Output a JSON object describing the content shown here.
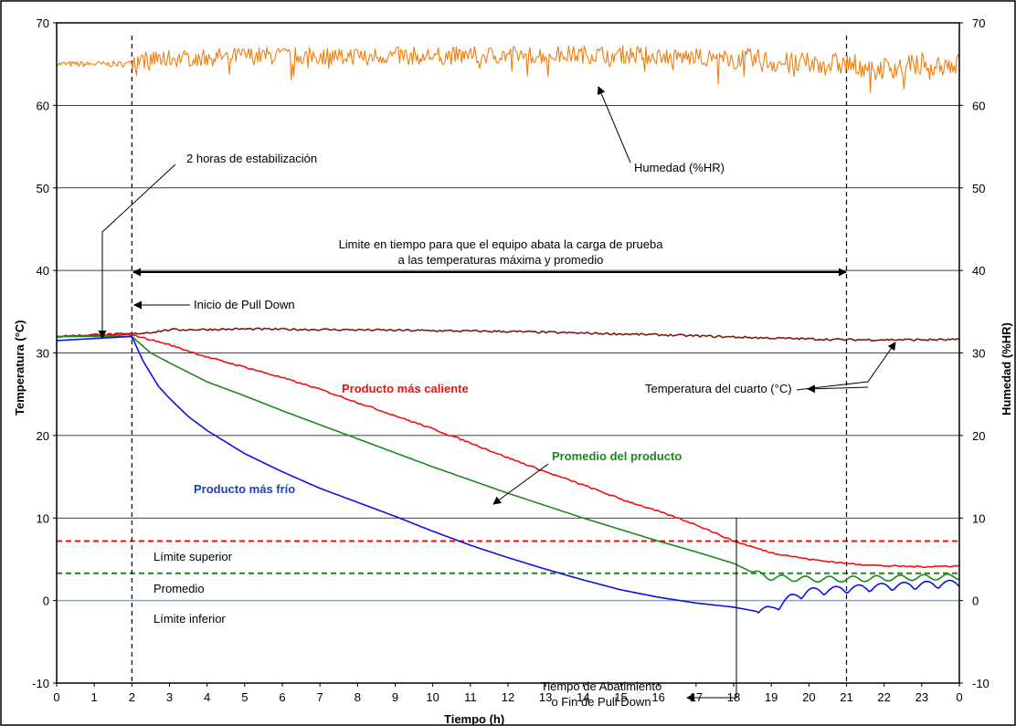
{
  "chart_data": {
    "type": "line",
    "xlabel": "Tiempo (h)",
    "ylabel_left": "Temperatura (°C)",
    "ylabel_right": "Humedad (%HR)",
    "xlim": [
      0,
      24
    ],
    "ylim": [
      -10,
      70
    ],
    "x_ticks": [
      "0",
      "1",
      "2",
      "3",
      "4",
      "5",
      "6",
      "7",
      "8",
      "9",
      "10",
      "11",
      "12",
      "13",
      "14",
      "15",
      "16",
      "17",
      "18",
      "19",
      "20",
      "21",
      "22",
      "23",
      "0"
    ],
    "y_ticks": [
      -10,
      0,
      10,
      20,
      30,
      40,
      50,
      60,
      70
    ],
    "grid": "horizontal",
    "colors": {
      "humidity": "#f07f12",
      "room": "#7a1a16",
      "hot": "#f01010",
      "avg": "#1a8a1a",
      "cold": "#1010e0",
      "limit_upper": "#f01010",
      "limit_avg": "#1a8a1a",
      "limit_lower": "#7ea7e0"
    },
    "series": [
      {
        "name": "Humedad (%HR)",
        "key": "humidity",
        "axis": "right",
        "x": [
          0,
          1.9,
          2,
          5,
          10,
          15,
          18.5,
          19.5,
          21,
          22,
          23,
          24
        ],
        "y": [
          65,
          65,
          65.5,
          66,
          66,
          66.2,
          65.5,
          65,
          65,
          64.5,
          65,
          65
        ]
      },
      {
        "name": "Temperatura del cuarto (°C)",
        "key": "room",
        "axis": "left",
        "x": [
          0,
          1,
          2,
          2.5,
          3,
          5,
          8,
          12,
          16,
          19,
          21,
          24
        ],
        "y": [
          32,
          32.2,
          32.3,
          32.5,
          32.8,
          32.9,
          32.8,
          32.6,
          32.2,
          31.8,
          31.6,
          31.6
        ]
      },
      {
        "name": "Producto más caliente",
        "key": "hot",
        "axis": "left",
        "x": [
          0,
          2,
          3,
          4,
          5,
          6,
          7,
          8,
          9,
          10,
          11,
          12,
          13,
          14,
          15,
          16,
          17,
          18,
          19,
          20,
          21,
          22,
          23,
          24
        ],
        "y": [
          32,
          32.2,
          31,
          29.5,
          28.3,
          27,
          25.6,
          24,
          22.4,
          20.8,
          19.1,
          17.3,
          15.6,
          14,
          12.3,
          10.8,
          9.2,
          7.2,
          5.8,
          5,
          4.5,
          4.2,
          4.1,
          4.2
        ]
      },
      {
        "name": "Promedio del producto",
        "key": "avg",
        "axis": "left",
        "x": [
          0,
          2,
          2.5,
          3,
          4,
          5,
          6,
          7,
          8,
          9,
          10,
          11,
          12,
          13,
          14,
          15,
          16,
          17,
          18,
          18.5,
          19,
          20,
          21,
          22,
          23,
          24
        ],
        "y": [
          32,
          32,
          30,
          28.8,
          26.5,
          24.8,
          23,
          21.3,
          19.6,
          17.9,
          16.2,
          14.6,
          13,
          11.5,
          10,
          8.6,
          7.2,
          5.9,
          4.5,
          3.4,
          2.8,
          2.6,
          2.6,
          2.7,
          2.8,
          2.9
        ]
      },
      {
        "name": "Producto más frío",
        "key": "cold",
        "axis": "left",
        "x": [
          0,
          2,
          2.3,
          2.7,
          3,
          3.5,
          4,
          5,
          6,
          7,
          8,
          9,
          10,
          11,
          12,
          13,
          14,
          15,
          16,
          17,
          18,
          18.6,
          19,
          19.5,
          20,
          21,
          22,
          23,
          24
        ],
        "y": [
          31.5,
          32,
          29,
          26,
          24.5,
          22.3,
          20.6,
          17.8,
          15.6,
          13.6,
          11.9,
          10.2,
          8.4,
          6.7,
          5.2,
          3.8,
          2.5,
          1.3,
          0.4,
          -0.3,
          -0.8,
          -1.3,
          -1.2,
          0.2,
          1,
          1.3,
          1.6,
          1.8,
          2
        ]
      }
    ],
    "limits": [
      {
        "label": "Límite superior",
        "key": "limit_upper",
        "y": 7.2,
        "style": "dashed"
      },
      {
        "label": "Promedio",
        "key": "limit_avg",
        "y": 3.3,
        "style": "dashed"
      },
      {
        "label": "Límite inferior",
        "key": "limit_lower",
        "y": 0,
        "style": "solid"
      }
    ],
    "vlines": [
      2,
      21
    ],
    "annotations": {
      "estabilizacion": "2 horas de estabilización",
      "humedad": "Humedad (%HR)",
      "limite_line1": "Limite en tiempo para que el equipo abata la carga de prueba",
      "limite_line2": "a las temperaturas máxima y promedio",
      "inicio": "Inicio de Pull Down",
      "cuarto": "Temperatura del cuarto (°C)",
      "caliente": "Producto más caliente",
      "promedio_producto": "Promedio del producto",
      "frio": "Producto más frío",
      "abatimiento_line1": "Tiempo de Abatimiento",
      "abatimiento_line2": "o Fin de Pull Down"
    }
  }
}
